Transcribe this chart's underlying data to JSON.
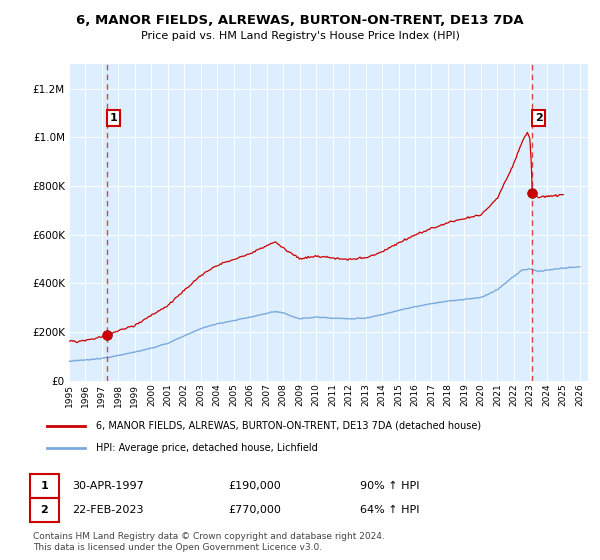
{
  "title": "6, MANOR FIELDS, ALREWAS, BURTON-ON-TRENT, DE13 7DA",
  "subtitle": "Price paid vs. HM Land Registry's House Price Index (HPI)",
  "legend_line1": "6, MANOR FIELDS, ALREWAS, BURTON-ON-TRENT, DE13 7DA (detached house)",
  "legend_line2": "HPI: Average price, detached house, Lichfield",
  "annotation1_label": "1",
  "annotation1_date": "30-APR-1997",
  "annotation1_price": 190000,
  "annotation1_pct": "90% ↑ HPI",
  "annotation2_label": "2",
  "annotation2_date": "22-FEB-2023",
  "annotation2_price": 770000,
  "annotation2_pct": "64% ↑ HPI",
  "footer1": "Contains HM Land Registry data © Crown copyright and database right 2024.",
  "footer2": "This data is licensed under the Open Government Licence v3.0.",
  "hpi_color": "#7aaadd",
  "price_color": "#cc0000",
  "dot_color": "#cc0000",
  "vline_color": "#cc0000",
  "plot_bg": "#ddeeff",
  "ylim": [
    0,
    1300000
  ],
  "xlim_start": 1995.0,
  "xlim_end": 2026.5,
  "sale1_x": 1997.33,
  "sale2_x": 2023.12,
  "yticks": [
    0,
    200000,
    400000,
    600000,
    800000,
    1000000,
    1200000
  ]
}
